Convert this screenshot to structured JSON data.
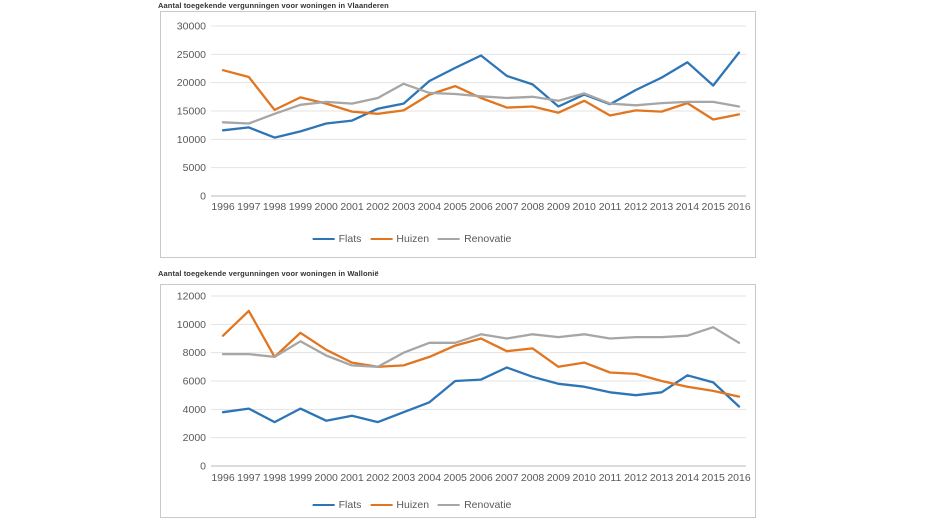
{
  "chart_data": [
    {
      "type": "line",
      "title": "Aantal toegekende vergunningen voor woningen in Vlaanderen",
      "x": [
        1996,
        1997,
        1998,
        1999,
        2000,
        2001,
        2002,
        2003,
        2004,
        2005,
        2006,
        2007,
        2008,
        2009,
        2010,
        2011,
        2012,
        2013,
        2014,
        2015,
        2016
      ],
      "series": [
        {
          "name": "Flats",
          "color": "#2e75b6",
          "values": [
            11600,
            12100,
            10300,
            11400,
            12800,
            13300,
            15400,
            16300,
            20300,
            22600,
            24800,
            21200,
            19700,
            15800,
            17900,
            16200,
            18700,
            20900,
            23600,
            19500,
            25300
          ]
        },
        {
          "name": "Huizen",
          "color": "#e2751f",
          "values": [
            22200,
            21000,
            15200,
            17400,
            16300,
            14900,
            14500,
            15100,
            17900,
            19400,
            17300,
            15600,
            15800,
            14700,
            16800,
            14200,
            15100,
            14900,
            16400,
            13500,
            14400
          ]
        },
        {
          "name": "Renovatie",
          "color": "#a6a6a6",
          "values": [
            13000,
            12800,
            14500,
            16100,
            16600,
            16300,
            17300,
            19800,
            18200,
            18000,
            17600,
            17300,
            17500,
            16800,
            18100,
            16300,
            16000,
            16400,
            16600,
            16600,
            15800
          ]
        }
      ],
      "xlabel": "",
      "ylabel": "",
      "ylim": [
        0,
        30000
      ],
      "ystep": 5000,
      "grid": true,
      "legend_position": "bottom"
    },
    {
      "type": "line",
      "title": "Aantal toegekende vergunningen voor woningen in Wallonië",
      "x": [
        1996,
        1997,
        1998,
        1999,
        2000,
        2001,
        2002,
        2003,
        2004,
        2005,
        2006,
        2007,
        2008,
        2009,
        2010,
        2011,
        2012,
        2013,
        2014,
        2015,
        2016
      ],
      "series": [
        {
          "name": "Flats",
          "color": "#2e75b6",
          "values": [
            3800,
            4050,
            3100,
            4050,
            3200,
            3550,
            3100,
            3800,
            4500,
            6000,
            6100,
            6950,
            6300,
            5800,
            5600,
            5200,
            5000,
            5200,
            6400,
            5900,
            4200
          ]
        },
        {
          "name": "Huizen",
          "color": "#e2751f",
          "values": [
            9200,
            10950,
            7700,
            9400,
            8200,
            7300,
            7000,
            7100,
            7700,
            8500,
            9000,
            8100,
            8300,
            7000,
            7300,
            6600,
            6500,
            6000,
            5600,
            5300,
            4900
          ]
        },
        {
          "name": "Renovatie",
          "color": "#a6a6a6",
          "values": [
            7900,
            7900,
            7700,
            8800,
            7800,
            7100,
            7000,
            8000,
            8700,
            8700,
            9300,
            9000,
            9300,
            9100,
            9300,
            9000,
            9100,
            9100,
            9200,
            9800,
            8700
          ]
        }
      ],
      "xlabel": "",
      "ylabel": "",
      "ylim": [
        0,
        12000
      ],
      "ystep": 2000,
      "grid": true,
      "legend_position": "bottom"
    }
  ],
  "style": {
    "gridline_color": "#e3e3e3",
    "axis_line_color": "#b9b9b9",
    "tick_label_color": "#595959",
    "title_color": "#333333"
  }
}
